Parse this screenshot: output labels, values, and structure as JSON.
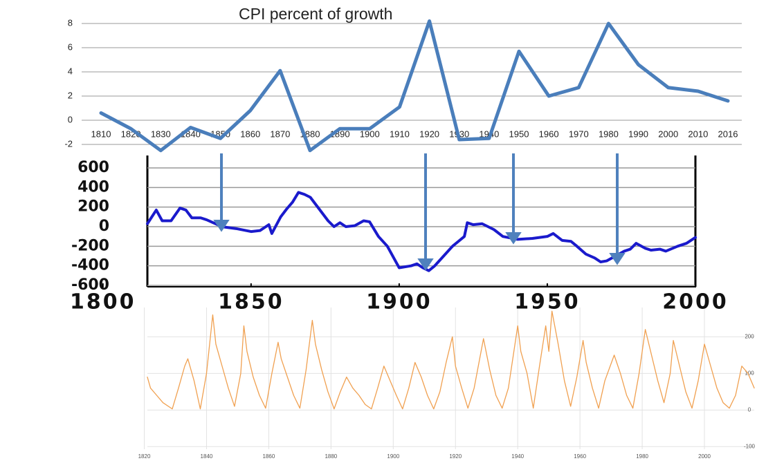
{
  "chart_data": [
    {
      "type": "line",
      "title": "CPI percent of growth",
      "categories": [
        "1810",
        "1820",
        "1830",
        "1840",
        "1850",
        "1860",
        "1870",
        "1880",
        "1890",
        "1900",
        "1910",
        "1920",
        "1930",
        "1940",
        "1950",
        "1960",
        "1970",
        "1980",
        "1990",
        "2000",
        "2010",
        "2016"
      ],
      "values": [
        0.6,
        -0.7,
        -2.5,
        -0.6,
        -1.5,
        0.8,
        4.1,
        -2.5,
        -0.7,
        -0.7,
        1.1,
        8.2,
        -1.6,
        -1.5,
        5.7,
        2.0,
        2.7,
        8.0,
        4.6,
        2.7,
        2.4,
        1.6
      ],
      "color": "#4a7ebb",
      "ylim": [
        -2.8,
        8.8
      ],
      "yticks": [
        -2,
        0,
        2,
        4,
        6,
        8
      ],
      "grid": true,
      "yaxis_side": "left"
    },
    {
      "type": "line",
      "x": [
        1815,
        1818,
        1820,
        1823,
        1826,
        1828,
        1830,
        1833,
        1835,
        1838,
        1840,
        1845,
        1850,
        1853,
        1856,
        1857,
        1860,
        1862,
        1864,
        1866,
        1868,
        1870,
        1873,
        1876,
        1878,
        1880,
        1882,
        1885,
        1888,
        1890,
        1893,
        1896,
        1900,
        1904,
        1906,
        1908,
        1910,
        1912,
        1915,
        1918,
        1920,
        1922,
        1923,
        1925,
        1928,
        1930,
        1932,
        1935,
        1940,
        1945,
        1950,
        1952,
        1955,
        1958,
        1960,
        1963,
        1966,
        1968,
        1970,
        1973,
        1976,
        1978,
        1980,
        1983,
        1985,
        1988,
        1990,
        1994,
        1997,
        2000
      ],
      "values": [
        30,
        170,
        60,
        60,
        190,
        170,
        90,
        90,
        70,
        30,
        0,
        -20,
        -50,
        -40,
        20,
        -70,
        100,
        180,
        250,
        350,
        330,
        300,
        180,
        60,
        0,
        40,
        0,
        10,
        60,
        50,
        -100,
        -200,
        -420,
        -400,
        -380,
        -420,
        -450,
        -400,
        -300,
        -200,
        -150,
        -100,
        40,
        20,
        30,
        0,
        -30,
        -100,
        -130,
        -120,
        -100,
        -70,
        -140,
        -150,
        -200,
        -280,
        -320,
        -360,
        -350,
        -300,
        -250,
        -230,
        -170,
        -220,
        -240,
        -230,
        -250,
        -200,
        -170,
        -110
      ],
      "color": "#1a1acc",
      "xlim": [
        1815,
        2000
      ],
      "xticks": [
        1800,
        1850,
        1900,
        1950,
        2000
      ],
      "ylim": [
        -600,
        600
      ],
      "yticks": [
        -600,
        -400,
        -200,
        0,
        200,
        400,
        600
      ],
      "grid": true,
      "yaxis_side": "left"
    },
    {
      "type": "line",
      "x": [
        1821,
        1822,
        1824,
        1826,
        1829,
        1831,
        1833,
        1834,
        1836,
        1838,
        1840,
        1842,
        1843,
        1845,
        1847,
        1849,
        1851,
        1852,
        1853,
        1855,
        1857,
        1859,
        1861,
        1863,
        1864,
        1866,
        1868,
        1870,
        1872,
        1874,
        1875,
        1877,
        1879,
        1881,
        1883,
        1885,
        1887,
        1889,
        1891,
        1893,
        1895,
        1897,
        1899,
        1901,
        1903,
        1905,
        1907,
        1909,
        1911,
        1913,
        1915,
        1917,
        1919,
        1920,
        1922,
        1924,
        1926,
        1929,
        1931,
        1933,
        1935,
        1937,
        1940,
        1941,
        1943,
        1945,
        1947,
        1949,
        1950,
        1951,
        1953,
        1955,
        1957,
        1959,
        1961,
        1962,
        1964,
        1966,
        1968,
        1971,
        1973,
        1975,
        1977,
        1979,
        1981,
        1983,
        1985,
        1987,
        1989,
        1990,
        1992,
        1994,
        1996,
        1998,
        2000,
        2002,
        2004,
        2006,
        2008,
        2010,
        2012,
        2014,
        2016
      ],
      "values": [
        90,
        60,
        40,
        20,
        3,
        60,
        120,
        140,
        80,
        3,
        100,
        260,
        180,
        120,
        60,
        10,
        100,
        230,
        160,
        90,
        40,
        5,
        100,
        185,
        140,
        90,
        40,
        5,
        110,
        245,
        180,
        110,
        50,
        3,
        50,
        90,
        60,
        40,
        15,
        3,
        60,
        120,
        80,
        40,
        3,
        60,
        130,
        90,
        40,
        3,
        50,
        130,
        200,
        120,
        60,
        5,
        60,
        195,
        110,
        40,
        5,
        60,
        230,
        160,
        100,
        5,
        120,
        230,
        160,
        270,
        180,
        80,
        10,
        90,
        190,
        130,
        60,
        5,
        80,
        150,
        100,
        40,
        5,
        100,
        220,
        150,
        80,
        20,
        100,
        190,
        120,
        50,
        5,
        80,
        180,
        120,
        60,
        20,
        5,
        40,
        120,
        100,
        60
      ],
      "color": "#f0a050",
      "xlim": [
        1821,
        2016
      ],
      "xticks": [
        1820,
        1840,
        1860,
        1880,
        1900,
        1920,
        1940,
        1960,
        1980,
        2000
      ],
      "ylim": [
        -107,
        280
      ],
      "yticks": [
        -100,
        0,
        100,
        200
      ],
      "grid": true,
      "yaxis_side": "right"
    }
  ]
}
